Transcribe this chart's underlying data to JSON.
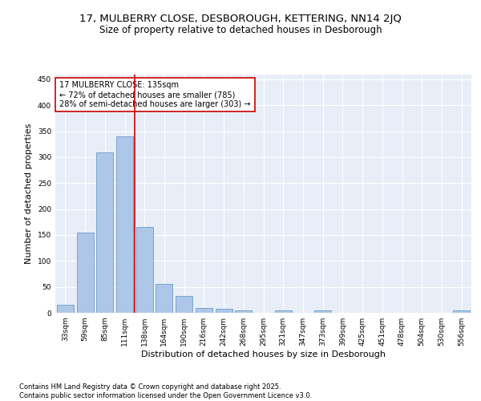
{
  "title_line1": "17, MULBERRY CLOSE, DESBOROUGH, KETTERING, NN14 2JQ",
  "title_line2": "Size of property relative to detached houses in Desborough",
  "xlabel": "Distribution of detached houses by size in Desborough",
  "ylabel": "Number of detached properties",
  "categories": [
    "33sqm",
    "59sqm",
    "85sqm",
    "111sqm",
    "138sqm",
    "164sqm",
    "190sqm",
    "216sqm",
    "242sqm",
    "268sqm",
    "295sqm",
    "321sqm",
    "347sqm",
    "373sqm",
    "399sqm",
    "425sqm",
    "451sqm",
    "478sqm",
    "504sqm",
    "530sqm",
    "556sqm"
  ],
  "values": [
    15,
    155,
    310,
    340,
    165,
    55,
    33,
    9,
    7,
    5,
    0,
    5,
    0,
    5,
    0,
    0,
    0,
    0,
    0,
    0,
    5
  ],
  "bar_color": "#aec6e8",
  "bar_edgecolor": "#5a8fc2",
  "vline_x": 3.5,
  "vline_color": "#cc0000",
  "annotation_text": "17 MULBERRY CLOSE: 135sqm\n← 72% of detached houses are smaller (785)\n28% of semi-detached houses are larger (303) →",
  "annotation_box_color": "#ffffff",
  "annotation_box_edgecolor": "#cc0000",
  "ylim": [
    0,
    460
  ],
  "yticks": [
    0,
    50,
    100,
    150,
    200,
    250,
    300,
    350,
    400,
    450
  ],
  "background_color": "#e8eef7",
  "footer_text": "Contains HM Land Registry data © Crown copyright and database right 2025.\nContains public sector information licensed under the Open Government Licence v3.0.",
  "title_fontsize": 9.5,
  "subtitle_fontsize": 8.5,
  "axis_label_fontsize": 8,
  "tick_fontsize": 6.5,
  "annotation_fontsize": 7,
  "footer_fontsize": 6
}
